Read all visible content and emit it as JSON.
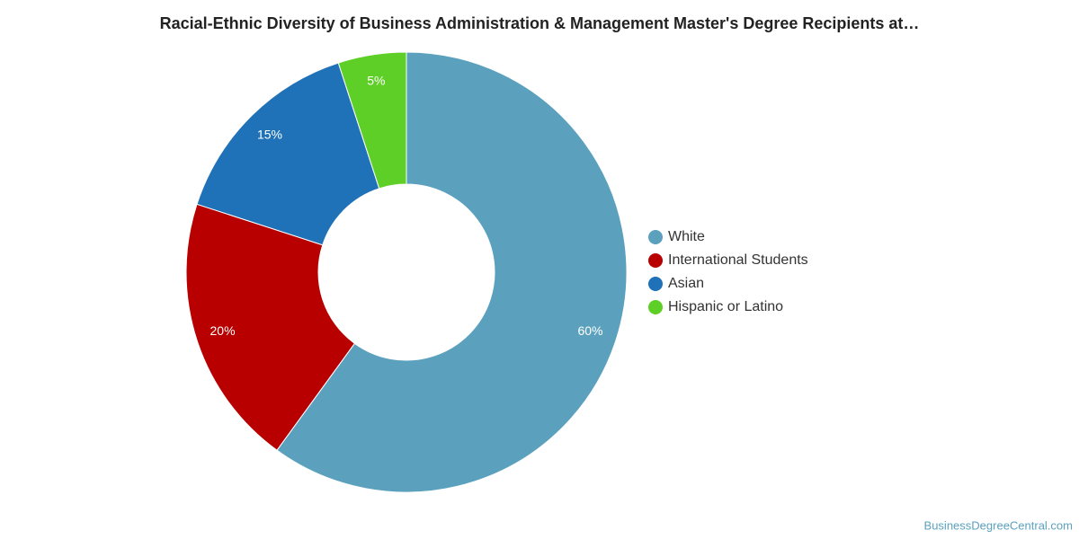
{
  "chart_data": {
    "type": "pie",
    "title": "Racial-Ethnic Diversity of Business Administration & Management Master's Degree Recipients at…",
    "categories": [
      "White",
      "International Students",
      "Asian",
      "Hispanic or Latino"
    ],
    "values": [
      60,
      20,
      15,
      5
    ],
    "value_labels": [
      "60%",
      "20%",
      "15%",
      "5%"
    ],
    "colors": [
      "#5ba1be",
      "#b80000",
      "#1f72b8",
      "#5ecf26"
    ],
    "legend": "right",
    "source": "BusinessDegreeCentral.com"
  }
}
